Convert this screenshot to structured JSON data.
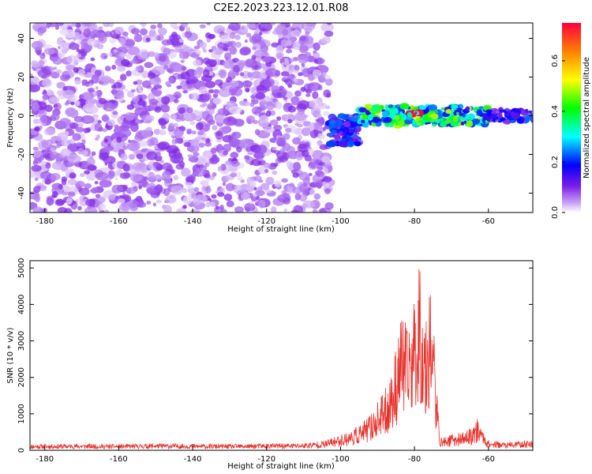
{
  "figure": {
    "title": "C2E2.2023.223.12.01.R08"
  },
  "chart_data": [
    {
      "type": "heatmap",
      "xlabel": "Height of straight line (km)",
      "ylabel": "Frequency (Hz)",
      "xlim": [
        -184,
        -48
      ],
      "ylim": [
        -50,
        48
      ],
      "xticks": [
        -180,
        -160,
        -140,
        -120,
        -100,
        -80,
        -60
      ],
      "yticks": [
        -40,
        -20,
        0,
        20,
        40
      ],
      "colorbar": {
        "label": "Normalized spectral amplitude",
        "range": [
          0,
          0.75
        ],
        "ticks": [
          0.0,
          0.2,
          0.4,
          0.6
        ]
      },
      "features": [
        {
          "x_range": [
            -184,
            -103
          ],
          "y_range": [
            -50,
            48
          ],
          "amplitude": 0.05,
          "note": "noise"
        },
        {
          "x_range": [
            -103,
            -95
          ],
          "y_range": [
            -15,
            0
          ],
          "amplitude": 0.2
        },
        {
          "x_range": [
            -95,
            -60
          ],
          "y_range": [
            -5,
            5
          ],
          "amplitude": 0.4
        },
        {
          "x_range": [
            -82,
            -78
          ],
          "y_range": [
            0,
            2
          ],
          "amplitude": 0.72
        },
        {
          "x_range": [
            -60,
            -48
          ],
          "y_range": [
            -3,
            3
          ],
          "amplitude": 0.2
        }
      ]
    },
    {
      "type": "line",
      "xlabel": "Height of straight line (km)",
      "ylabel": "SNR (10 * v/v)",
      "xlim": [
        -184,
        -48
      ],
      "ylim": [
        0,
        5200
      ],
      "xticks": [
        -180,
        -160,
        -140,
        -120,
        -100,
        -80,
        -60
      ],
      "yticks": [
        0,
        1000,
        2000,
        3000,
        4000,
        5000
      ],
      "series": [
        {
          "color": "#e8322c",
          "x": [
            -184,
            -170,
            -160,
            -150,
            -140,
            -130,
            -120,
            -110,
            -104,
            -100,
            -97,
            -94,
            -92,
            -90,
            -88,
            -87,
            -86,
            -85,
            -84,
            -83,
            -82,
            -81,
            -80,
            -79,
            -78.5,
            -78,
            -77.5,
            -77,
            -76,
            -75,
            -74,
            -73,
            -70,
            -67,
            -65,
            -63,
            -60,
            -55,
            -50,
            -48
          ],
          "y": [
            150,
            160,
            150,
            170,
            160,
            150,
            170,
            180,
            250,
            400,
            500,
            700,
            900,
            1200,
            1500,
            1800,
            2000,
            2600,
            3300,
            3500,
            3000,
            3600,
            3900,
            4600,
            5100,
            3500,
            4200,
            3000,
            4500,
            3800,
            1500,
            300,
            400,
            450,
            550,
            800,
            250,
            200,
            250,
            260
          ]
        }
      ]
    }
  ]
}
